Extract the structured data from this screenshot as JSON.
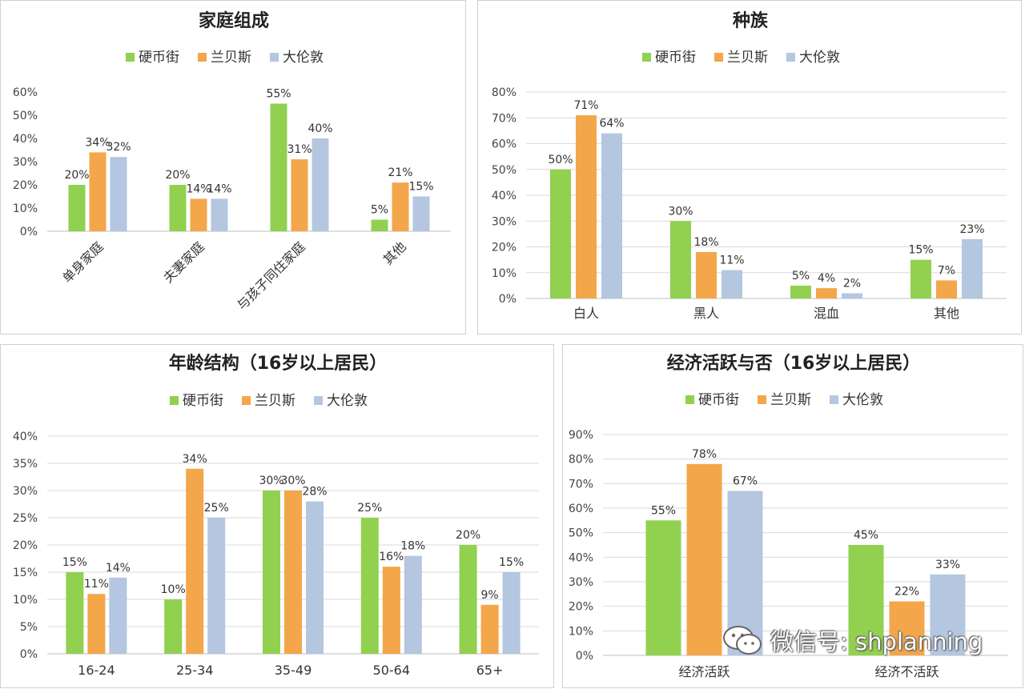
{
  "colors": {
    "硬币街": "#92d050",
    "兰贝斯": "#f4a64a",
    "大伦敦": "#b4c6e0"
  },
  "watermark": {
    "icon": "wechat-icon",
    "text": "微信号: shplanning"
  },
  "chart_data": [
    {
      "type": "bar",
      "title": "家庭组成",
      "categories": [
        "单身家庭",
        "夫妻家庭",
        "与孩子同住家庭",
        "其他"
      ],
      "series": [
        {
          "name": "硬币街",
          "values": [
            20,
            20,
            55,
            5
          ]
        },
        {
          "name": "兰贝斯",
          "values": [
            34,
            14,
            31,
            21
          ]
        },
        {
          "name": "大伦敦",
          "values": [
            32,
            14,
            40,
            15
          ]
        }
      ],
      "ylim": [
        0,
        60
      ],
      "yticks": [
        "0%",
        "10%",
        "20%",
        "30%",
        "40%",
        "50%",
        "60%"
      ],
      "data_labels": [
        [
          "20%",
          "20%",
          "55%",
          "5%"
        ],
        [
          "34%",
          "14%",
          "31%",
          "21%"
        ],
        [
          "32%",
          "14%",
          "40%",
          "15%"
        ]
      ],
      "rotated_labels": true,
      "grid": false,
      "legend": "top"
    },
    {
      "type": "bar",
      "title": "种族",
      "categories": [
        "白人",
        "黑人",
        "混血",
        "其他"
      ],
      "series": [
        {
          "name": "硬币街",
          "values": [
            50,
            30,
            5,
            15
          ]
        },
        {
          "name": "兰贝斯",
          "values": [
            71,
            18,
            4,
            7
          ]
        },
        {
          "name": "大伦敦",
          "values": [
            64,
            11,
            2,
            23
          ]
        }
      ],
      "ylim": [
        0,
        80
      ],
      "yticks": [
        "0%",
        "10%",
        "20%",
        "30%",
        "40%",
        "50%",
        "60%",
        "70%",
        "80%"
      ],
      "data_labels": [
        [
          "50%",
          "30%",
          "5%",
          "15%"
        ],
        [
          "71%",
          "18%",
          "4%",
          "7%"
        ],
        [
          "64%",
          "11%",
          "2%",
          "23%"
        ]
      ],
      "grid": true,
      "legend": "top"
    },
    {
      "type": "bar",
      "title": "年龄结构（16岁以上居民）",
      "categories": [
        "16-24",
        "25-34",
        "35-49",
        "50-64",
        "65+"
      ],
      "series": [
        {
          "name": "硬币街",
          "values": [
            15,
            10,
            30,
            25,
            20
          ]
        },
        {
          "name": "兰贝斯",
          "values": [
            11,
            34,
            30,
            16,
            9
          ]
        },
        {
          "name": "大伦敦",
          "values": [
            14,
            25,
            28,
            18,
            15
          ]
        }
      ],
      "ylim": [
        0,
        40
      ],
      "yticks": [
        "0%",
        "5%",
        "10%",
        "15%",
        "20%",
        "25%",
        "30%",
        "35%",
        "40%"
      ],
      "data_labels": [
        [
          "15%",
          "10%",
          "30%",
          "25%",
          "20%"
        ],
        [
          "11%",
          "34%",
          "30%",
          "16%",
          "9%"
        ],
        [
          "14%",
          "25%",
          "28%",
          "18%",
          "15%"
        ]
      ],
      "grid": true,
      "legend": "top"
    },
    {
      "type": "bar",
      "title": "经济活跃与否（16岁以上居民）",
      "categories": [
        "经济活跃",
        "经济不活跃"
      ],
      "series": [
        {
          "name": "硬币街",
          "values": [
            55,
            45
          ]
        },
        {
          "name": "兰贝斯",
          "values": [
            78,
            22
          ]
        },
        {
          "name": "大伦敦",
          "values": [
            67,
            33
          ]
        }
      ],
      "ylim": [
        0,
        90
      ],
      "yticks": [
        "0%",
        "10%",
        "20%",
        "30%",
        "40%",
        "50%",
        "60%",
        "70%",
        "80%",
        "90%"
      ],
      "data_labels": [
        [
          "55%",
          "45%"
        ],
        [
          "78%",
          "22%"
        ],
        [
          "67%",
          "33%"
        ]
      ],
      "grid": true,
      "legend": "top"
    }
  ]
}
